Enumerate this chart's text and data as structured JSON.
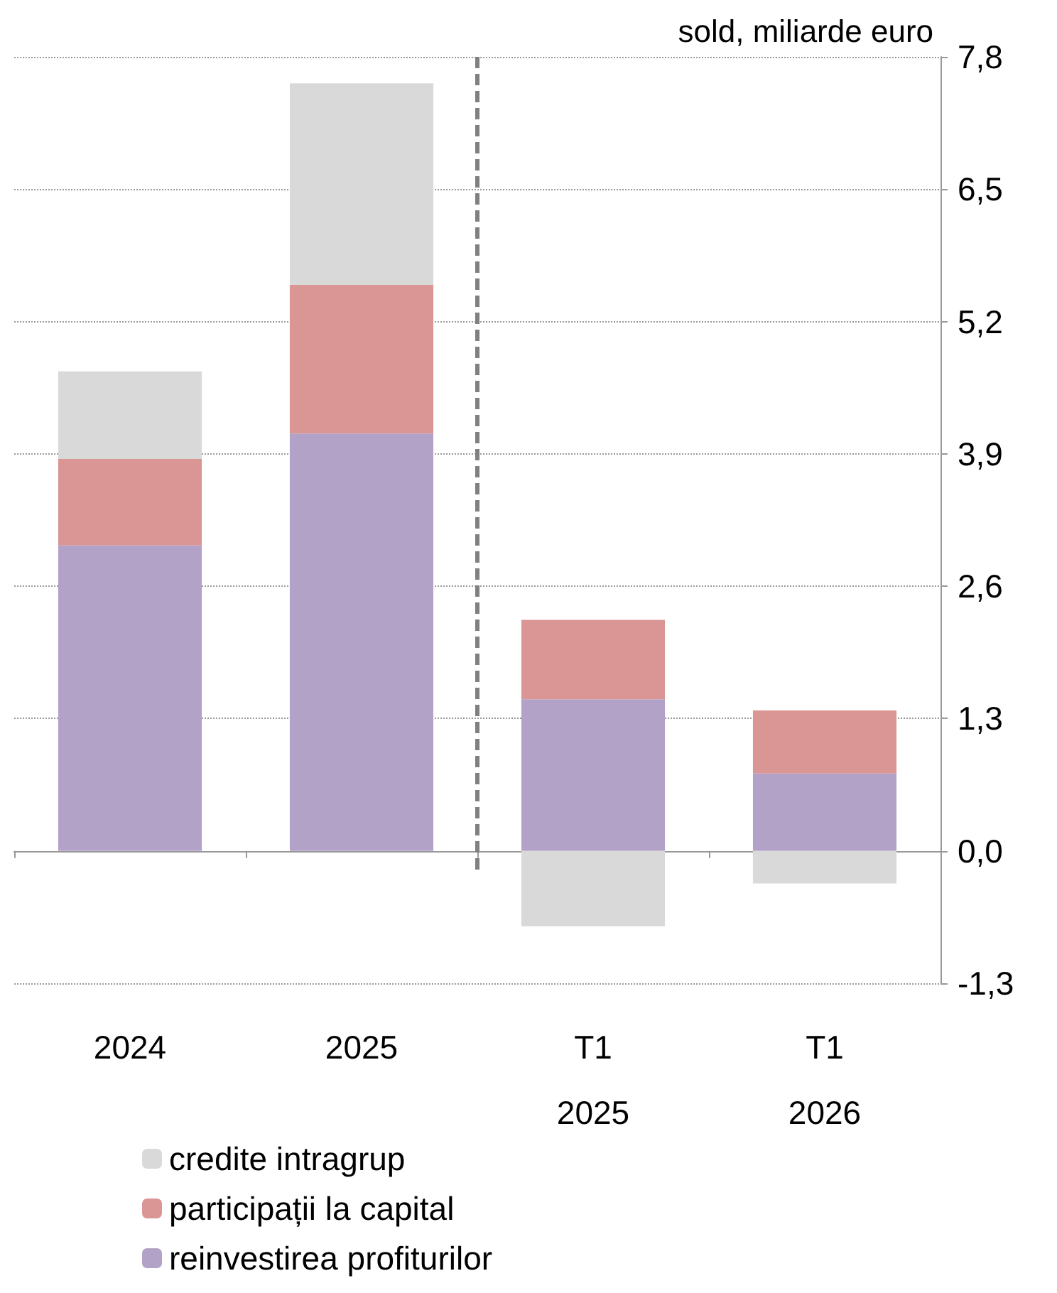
{
  "chart_data": {
    "type": "bar",
    "stacked": true,
    "ylabel": "sold, miliarde euro",
    "categories": [
      "2024",
      "2025",
      "T1\n2025",
      "T1\n2026"
    ],
    "series": [
      {
        "name": "reinvestirea profiturilor",
        "color": "#b3a2c7",
        "values": [
          3.0,
          4.1,
          1.49,
          0.76
        ]
      },
      {
        "name": "participații la capital",
        "color": "#d99694",
        "values": [
          0.85,
          1.46,
          0.78,
          0.62
        ]
      },
      {
        "name": "credite intragrup",
        "color": "#d9d9d9",
        "values": [
          0.86,
          1.98,
          -0.74,
          -0.32
        ]
      }
    ],
    "ylim": [
      -1.3,
      7.8
    ],
    "yticks": [
      {
        "value": -1.3,
        "label": "-1,3"
      },
      {
        "value": 0,
        "label": "0,0"
      },
      {
        "value": 1.3,
        "label": "1,3"
      },
      {
        "value": 2.6,
        "label": "2,6"
      },
      {
        "value": 3.9,
        "label": "3,9"
      },
      {
        "value": 5.2,
        "label": "5,2"
      },
      {
        "value": 6.5,
        "label": "6,5"
      },
      {
        "value": 7.8,
        "label": "7,8"
      }
    ],
    "grid": "y",
    "legend": "bottom left"
  }
}
